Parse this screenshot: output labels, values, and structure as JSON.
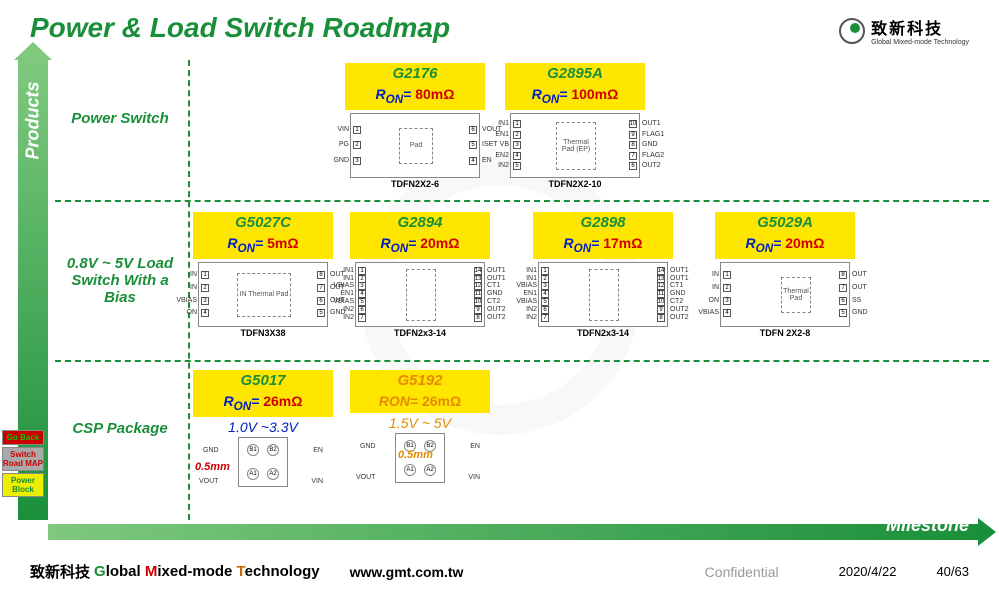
{
  "title": "Power & Load Switch Roadmap",
  "logo": {
    "cn": "致新科技",
    "en": "Global Mixed-mode Technology"
  },
  "axes": {
    "y": "Products",
    "x": "Milestone"
  },
  "row_labels": {
    "r1": "Power Switch",
    "r2": "0.8V ~ 5V Load Switch With a Bias",
    "r3": "CSP Package"
  },
  "products": {
    "g2176": {
      "name": "G2176",
      "ron": "80mΩ",
      "pkg": "TDFN2X2-6",
      "left_pins": [
        "VIN",
        "PG",
        "GND"
      ],
      "right_pins": [
        "VOUT",
        "ISET",
        "EN"
      ],
      "pad": "Pad"
    },
    "g2895a": {
      "name": "G2895A",
      "ron": "100mΩ",
      "pkg": "TDFN2X2-10",
      "left_pins": [
        "IN1",
        "EN1",
        "VB",
        "EN2",
        "IN2"
      ],
      "right_pins": [
        "OUT1",
        "FLAG1",
        "GND",
        "FLAG2",
        "OUT2"
      ],
      "pad": "Thermal Pad (EP)"
    },
    "g5027c": {
      "name": "G5027C",
      "ron": "5mΩ",
      "pkg": "TDFN3X38",
      "left_pins": [
        "IN",
        "IN",
        "VBIAS",
        "ON"
      ],
      "right_pins": [
        "OUT",
        "OUT",
        "OUT",
        "GND"
      ],
      "pad": "IN Thermal Pad"
    },
    "g2894": {
      "name": "G2894",
      "ron": "20mΩ",
      "pkg": "TDFN2x3-14",
      "left_pins": [
        "IN1",
        "IN1",
        "VBIAS",
        "EN1",
        "VBIAS",
        "IN2",
        "IN2"
      ],
      "right_pins": [
        "OUT1",
        "OUT1",
        "CT1",
        "GND",
        "CT2",
        "OUT2",
        "OUT2"
      ]
    },
    "g2898": {
      "name": "G2898",
      "ron": "17mΩ",
      "pkg": "TDFN2x3-14",
      "left_pins": [
        "IN1",
        "IN1",
        "VBIAS",
        "EN1",
        "VBIAS",
        "IN2",
        "IN2"
      ],
      "right_pins": [
        "OUT1",
        "OUT1",
        "CT1",
        "GND",
        "CT2",
        "OUT2",
        "OUT2"
      ]
    },
    "g5029a": {
      "name": "G5029A",
      "ron": "20mΩ",
      "pkg": "TDFN 2X2-8",
      "left_pins": [
        "IN",
        "IN",
        "ON",
        "VBIAS"
      ],
      "right_pins": [
        "OUT",
        "OUT",
        "SS",
        "GND"
      ],
      "pad": "Thermal Pad"
    },
    "g5017": {
      "name": "G5017",
      "ron": "26mΩ",
      "vrange": "1.0V ~3.3V",
      "dim": "0.5mm",
      "balls": [
        "B1",
        "B2",
        "A1",
        "A2"
      ],
      "ball_labels": {
        "tl": "GND",
        "tr": "EN",
        "bl": "VOUT",
        "br": "VIN"
      }
    },
    "g5192": {
      "name": "G5192",
      "ron": "26mΩ",
      "vrange": "1.5V ~ 5V",
      "dim": "0.5mm",
      "balls": [
        "B1",
        "B2",
        "A1",
        "A2"
      ],
      "ball_labels": {
        "tl": "GND",
        "tr": "EN",
        "bl": "VOUT",
        "br": "VIN"
      }
    }
  },
  "side_buttons": [
    {
      "label": "Go Back",
      "cls": "red"
    },
    {
      "label": "Switch Road MAP",
      "cls": "gray"
    },
    {
      "label": "Power Block",
      "cls": "yellow"
    }
  ],
  "footer": {
    "cn": "致新科技",
    "company": "Global Mixed-mode Technology",
    "url": "www.gmt.com.tw",
    "conf": "Confidential",
    "date": "2020/4/22",
    "page": "40/63"
  },
  "colors": {
    "green": "#1a8f3a",
    "yellow_bg": "#ffe600",
    "ron_blue": "#0020c0",
    "ron_red": "#d00000",
    "orange": "#e68a00"
  }
}
